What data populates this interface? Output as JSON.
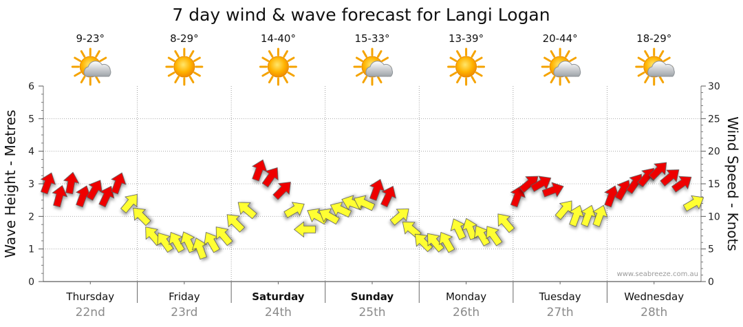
{
  "chart_data": {
    "type": "line",
    "title": "7 day wind & wave forecast for Langi Logan",
    "ylabel_left": "Wave Height - Metres",
    "ylabel_right": "Wind Speed - Knots",
    "ylim_left": [
      0,
      6
    ],
    "ylim_right": [
      0,
      30
    ],
    "yticks_left": [
      "0",
      "1",
      "2",
      "3",
      "4",
      "5",
      "6"
    ],
    "yticks_right": [
      "0",
      "5",
      "10",
      "15",
      "20",
      "25",
      "30"
    ],
    "watermark": "www.seabreeze.com.au",
    "grid": true,
    "legend": "none",
    "colors": {
      "light_wind": "#ffff33",
      "strong_wind": "#ee0000",
      "arrow_outline": "#555555",
      "grid": "#999999",
      "axis": "#777777",
      "axis_dark": "#333333"
    },
    "color_threshold_knots": 13,
    "days": [
      {
        "name": "Thursday",
        "date": "22nd",
        "temp": "9-23°",
        "weather": "partly-cloudy-icon",
        "bold": false
      },
      {
        "name": "Friday",
        "date": "23rd",
        "temp": "8-29°",
        "weather": "sunny-icon",
        "bold": false
      },
      {
        "name": "Saturday",
        "date": "24th",
        "temp": "14-40°",
        "weather": "sunny-icon",
        "bold": true
      },
      {
        "name": "Sunday",
        "date": "25th",
        "temp": "15-33°",
        "weather": "partly-cloudy-icon",
        "bold": true
      },
      {
        "name": "Monday",
        "date": "26th",
        "temp": "13-39°",
        "weather": "sunny-icon",
        "bold": false
      },
      {
        "name": "Tuesday",
        "date": "27th",
        "temp": "20-44°",
        "weather": "partly-cloudy-icon",
        "bold": false
      },
      {
        "name": "Wednesday",
        "date": "28th",
        "temp": "18-29°",
        "weather": "partly-cloudy-icon",
        "bold": false
      }
    ],
    "series": [
      {
        "name": "Wind",
        "x_hours": [
          0,
          3,
          6,
          9,
          12,
          15,
          18,
          21,
          24,
          27,
          30,
          33,
          36,
          39,
          42,
          45,
          48,
          51,
          54,
          57,
          60,
          63,
          66,
          69,
          72,
          75,
          78,
          81,
          84,
          87,
          90,
          93,
          96,
          99,
          102,
          105,
          108,
          111,
          114,
          117,
          120,
          123,
          126,
          129,
          132,
          135,
          138,
          141,
          144,
          147,
          150,
          153,
          156,
          159,
          162,
          165
        ],
        "speed_knots": [
          15,
          13,
          15,
          13,
          14,
          13,
          15,
          12,
          10,
          7,
          6,
          6,
          6,
          5,
          6,
          7,
          9,
          11,
          17,
          16,
          14,
          11,
          8,
          10,
          10,
          11,
          12,
          12,
          14,
          13,
          10,
          8,
          6,
          6,
          6,
          8,
          8,
          7,
          7,
          9,
          13,
          15,
          15,
          14,
          11,
          10,
          10,
          10,
          13,
          14,
          15,
          16,
          17,
          16,
          15,
          12
        ],
        "direction_deg": [
          200,
          195,
          190,
          200,
          210,
          205,
          200,
          220,
          135,
          140,
          145,
          150,
          155,
          160,
          150,
          140,
          135,
          130,
          200,
          215,
          225,
          240,
          90,
          120,
          120,
          115,
          110,
          115,
          200,
          205,
          230,
          130,
          135,
          140,
          150,
          155,
          160,
          150,
          145,
          140,
          200,
          230,
          240,
          250,
          220,
          200,
          200,
          200,
          200,
          210,
          215,
          220,
          225,
          230,
          235,
          240
        ]
      }
    ]
  }
}
